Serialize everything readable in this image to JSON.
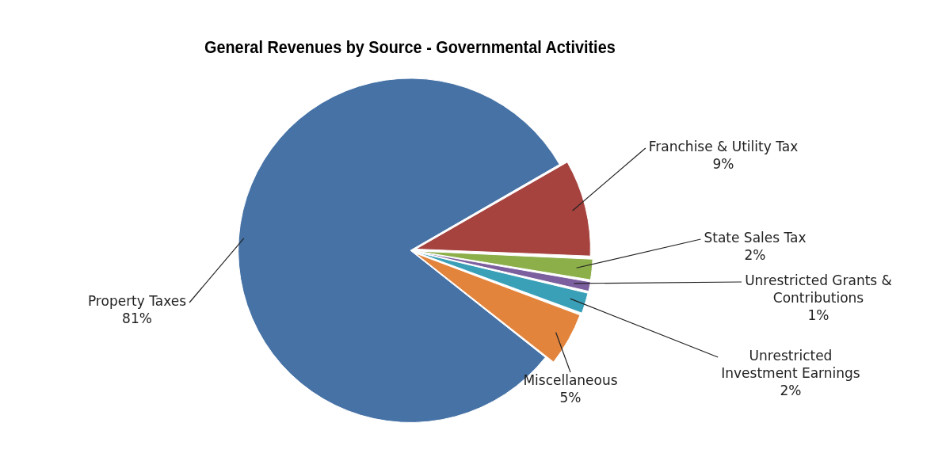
{
  "chart_data": {
    "type": "pie",
    "title": "General Revenues by Source - Governmental Activities",
    "categories": [
      "Franchise & Utility Tax",
      "State Sales Tax",
      "Unrestricted Grants & Contributions",
      "Unrestricted Investment Earnings",
      "Miscellaneous",
      "Property Taxes"
    ],
    "values": [
      9,
      2,
      1,
      2,
      5,
      81
    ],
    "value_labels": [
      "9%",
      "2%",
      "1%",
      "2%",
      "5%",
      "81%"
    ],
    "colors": [
      "#a6433f",
      "#8caf4a",
      "#7c5f9e",
      "#3aa0b8",
      "#e3843c",
      "#4672a6"
    ],
    "legend": false
  }
}
